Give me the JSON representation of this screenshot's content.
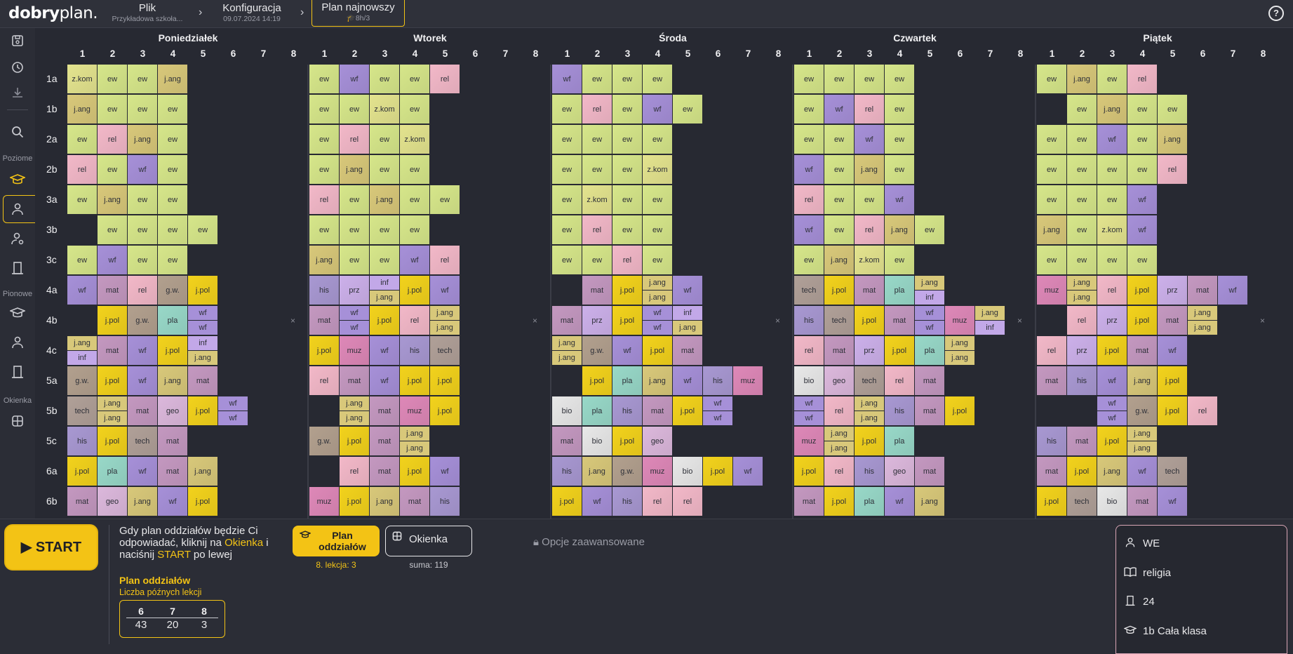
{
  "app": {
    "logo_bold": "dobry",
    "logo_rest": "plan."
  },
  "breadcrumb": [
    {
      "title": "Plik",
      "sub": "Przykładowa szkoła..."
    },
    {
      "title": "Konfiguracja",
      "sub": "09.07.2024 14:19"
    },
    {
      "title": "Plan najnowszy",
      "sub": "8h/3"
    }
  ],
  "sidebar": {
    "label_poziome": "Poziome",
    "label_pionowe": "Pionowe",
    "label_okienka": "Okienka"
  },
  "days": [
    "Poniedziałek",
    "Wtorek",
    "Środa",
    "Czwartek",
    "Piątek"
  ],
  "periods": [
    "1",
    "2",
    "3",
    "4",
    "5",
    "6",
    "7",
    "8"
  ],
  "classes": [
    "1a",
    "1b",
    "2a",
    "2b",
    "3a",
    "3b",
    "3c",
    "4a",
    "4b",
    "4c",
    "5a",
    "5b",
    "5c",
    "6a",
    "6b"
  ],
  "empty_marker": "×",
  "subject_colors": {
    "ew": "#d6e68a",
    "wf": "#a690d8",
    "rel": "#f2b8c8",
    "j.ang": "#d8c87a",
    "z.kom": "#e3e38e",
    "j.pol": "#f2d21c",
    "mat": "#c498c0",
    "g.w.": "#b2a08e",
    "pla": "#98d8c8",
    "inf": "#c2a8e8",
    "prz": "#ccb0ea",
    "his": "#a898d2",
    "tech": "#b0a098",
    "muz": "#de88b8",
    "bio": "#e8e8e8",
    "geo": "#dcb8dc"
  },
  "schedule": {
    "Poniedziałek": {
      "1a": [
        "z.kom",
        "ew",
        "ew",
        "j.ang"
      ],
      "1b": [
        "j.ang",
        "ew",
        "ew",
        "ew"
      ],
      "2a": [
        "ew",
        "rel",
        "j.ang",
        "ew"
      ],
      "2b": [
        "rel",
        "ew",
        "wf",
        "ew"
      ],
      "3a": [
        "ew",
        "j.ang",
        "ew",
        "ew"
      ],
      "3b": [
        "",
        "ew",
        "ew",
        "ew",
        "ew"
      ],
      "3c": [
        "ew",
        "wf",
        "ew",
        "ew"
      ],
      "4a": [
        "wf",
        "mat",
        "rel",
        "g.w.",
        "j.pol"
      ],
      "4b": [
        "",
        "j.pol",
        "g.w.",
        "pla",
        "wf/wf",
        "",
        "",
        "×"
      ],
      "4c": [
        "j.ang/inf",
        "mat",
        "wf",
        "j.pol",
        "inf/j.ang"
      ],
      "5a": [
        "g.w.",
        "j.pol",
        "wf",
        "j.ang",
        "mat"
      ],
      "5b": [
        "tech",
        "j.ang/j.ang",
        "mat",
        "geo",
        "j.pol",
        "wf/wf"
      ],
      "5c": [
        "his",
        "j.pol",
        "tech",
        "mat"
      ],
      "6a": [
        "j.pol",
        "pla",
        "wf",
        "mat",
        "j.ang"
      ],
      "6b": [
        "mat",
        "geo",
        "j.ang",
        "wf",
        "j.pol"
      ]
    },
    "Wtorek": {
      "1a": [
        "ew",
        "wf",
        "ew",
        "ew",
        "rel"
      ],
      "1b": [
        "ew",
        "ew",
        "z.kom",
        "ew"
      ],
      "2a": [
        "ew",
        "rel",
        "ew",
        "z.kom"
      ],
      "2b": [
        "ew",
        "j.ang",
        "ew",
        "ew"
      ],
      "3a": [
        "rel",
        "ew",
        "j.ang",
        "ew",
        "ew"
      ],
      "3b": [
        "ew",
        "ew",
        "ew",
        "ew"
      ],
      "3c": [
        "j.ang",
        "ew",
        "ew",
        "wf",
        "rel"
      ],
      "4a": [
        "his",
        "prz",
        "inf/j.ang",
        "j.pol",
        "wf"
      ],
      "4b": [
        "mat",
        "wf/wf",
        "j.pol",
        "rel",
        "j.ang/j.ang",
        "",
        "",
        "×"
      ],
      "4c": [
        "j.pol",
        "muz",
        "wf",
        "his",
        "tech"
      ],
      "5a": [
        "rel",
        "mat",
        "wf",
        "j.pol",
        "j.pol"
      ],
      "5b": [
        "",
        "j.ang/j.ang",
        "mat",
        "muz",
        "j.pol"
      ],
      "5c": [
        "g.w.",
        "j.pol",
        "mat",
        "j.ang/j.ang"
      ],
      "6a": [
        "",
        "rel",
        "mat",
        "j.pol",
        "wf"
      ],
      "6b": [
        "muz",
        "j.pol",
        "j.ang",
        "mat",
        "his"
      ]
    },
    "Środa": {
      "1a": [
        "wf",
        "ew",
        "ew",
        "ew"
      ],
      "1b": [
        "ew",
        "rel",
        "ew",
        "wf",
        "ew"
      ],
      "2a": [
        "ew",
        "ew",
        "ew",
        "ew"
      ],
      "2b": [
        "ew",
        "ew",
        "ew",
        "z.kom"
      ],
      "3a": [
        "ew",
        "z.kom",
        "ew",
        "ew"
      ],
      "3b": [
        "ew",
        "rel",
        "ew",
        "ew"
      ],
      "3c": [
        "ew",
        "ew",
        "rel",
        "ew"
      ],
      "4a": [
        "",
        "mat",
        "j.pol",
        "j.ang/j.ang",
        "wf"
      ],
      "4b": [
        "mat",
        "prz",
        "j.pol",
        "wf/wf",
        "inf/j.ang",
        "",
        "",
        "×"
      ],
      "4c": [
        "j.ang/j.ang",
        "g.w.",
        "wf",
        "j.pol",
        "mat"
      ],
      "5a": [
        "",
        "j.pol",
        "pla",
        "j.ang",
        "wf",
        "his",
        "muz"
      ],
      "5b": [
        "bio",
        "pla",
        "his",
        "mat",
        "j.pol",
        "wf/wf"
      ],
      "5c": [
        "mat",
        "bio",
        "j.pol",
        "geo"
      ],
      "6a": [
        "his",
        "j.ang",
        "g.w.",
        "muz",
        "bio",
        "j.pol",
        "wf"
      ],
      "6b": [
        "j.pol",
        "wf",
        "his",
        "rel",
        "rel"
      ]
    },
    "Czwartek": {
      "1a": [
        "ew",
        "ew",
        "ew",
        "ew"
      ],
      "1b": [
        "ew",
        "wf",
        "rel",
        "ew"
      ],
      "2a": [
        "ew",
        "ew",
        "wf",
        "ew"
      ],
      "2b": [
        "wf",
        "ew",
        "j.ang",
        "ew"
      ],
      "3a": [
        "rel",
        "ew",
        "ew",
        "wf"
      ],
      "3b": [
        "wf",
        "ew",
        "rel",
        "j.ang",
        "ew"
      ],
      "3c": [
        "ew",
        "j.ang",
        "z.kom",
        "ew"
      ],
      "4a": [
        "tech",
        "j.pol",
        "mat",
        "pla",
        "j.ang/inf"
      ],
      "4b": [
        "his",
        "tech",
        "j.pol",
        "mat",
        "wf/wf",
        "muz",
        "j.ang/inf",
        "×"
      ],
      "4c": [
        "rel",
        "mat",
        "prz",
        "j.pol",
        "pla",
        "j.ang/j.ang"
      ],
      "5a": [
        "bio",
        "geo",
        "tech",
        "rel",
        "mat"
      ],
      "5b": [
        "wf/wf",
        "rel",
        "j.ang/j.ang",
        "his",
        "mat",
        "j.pol"
      ],
      "5c": [
        "muz",
        "j.ang/j.ang",
        "j.pol",
        "pla"
      ],
      "6a": [
        "j.pol",
        "rel",
        "his",
        "geo",
        "mat"
      ],
      "6b": [
        "mat",
        "j.pol",
        "pla",
        "wf",
        "j.ang"
      ]
    },
    "Piątek": {
      "1a": [
        "ew",
        "j.ang",
        "ew",
        "rel"
      ],
      "1b": [
        "",
        "ew",
        "j.ang",
        "ew",
        "ew"
      ],
      "2a": [
        "ew",
        "ew",
        "wf",
        "ew",
        "j.ang"
      ],
      "2b": [
        "ew",
        "ew",
        "ew",
        "ew",
        "rel"
      ],
      "3a": [
        "ew",
        "ew",
        "ew",
        "wf"
      ],
      "3b": [
        "j.ang",
        "ew",
        "z.kom",
        "wf"
      ],
      "3c": [
        "ew",
        "ew",
        "ew",
        "ew"
      ],
      "4a": [
        "muz",
        "j.ang/j.ang",
        "rel",
        "j.pol",
        "prz",
        "mat",
        "wf"
      ],
      "4b": [
        "",
        "rel",
        "prz",
        "j.pol",
        "mat",
        "j.ang/j.ang",
        "",
        "×"
      ],
      "4c": [
        "rel",
        "prz",
        "j.pol",
        "mat",
        "wf"
      ],
      "5a": [
        "mat",
        "his",
        "wf",
        "j.ang",
        "j.pol"
      ],
      "5b": [
        "",
        "",
        "wf/wf",
        "g.w.",
        "j.pol",
        "rel"
      ],
      "5c": [
        "his",
        "mat",
        "j.pol",
        "j.ang/j.ang"
      ],
      "6a": [
        "mat",
        "j.pol",
        "j.ang",
        "wf",
        "tech"
      ],
      "6b": [
        "j.pol",
        "tech",
        "bio",
        "mat",
        "wf"
      ]
    }
  },
  "bottom": {
    "start_label": "START",
    "hint_1": "Gdy plan oddziałów będzie Ci odpowiadać, kliknij na ",
    "hint_link": "Okienka",
    "hint_2": " i naciśnij ",
    "hint_start": "START",
    "hint_3": " po lewej",
    "btn_plan_label": "Plan oddziałów",
    "btn_plan_sub": "8. lekcja: 3",
    "btn_okienka_label": "Okienka",
    "btn_okienka_sub": "suma: 119",
    "advanced": "Opcje zaawansowane",
    "late_title": "Plan oddziałów",
    "late_subtitle": "Liczba późnych lekcji",
    "late_headers": [
      "6",
      "7",
      "8"
    ],
    "late_values": [
      "43",
      "20",
      "3"
    ]
  },
  "info_panel": {
    "teacher": "WE",
    "subject": "religia",
    "room": "24",
    "group": "1b Cała klasa"
  }
}
